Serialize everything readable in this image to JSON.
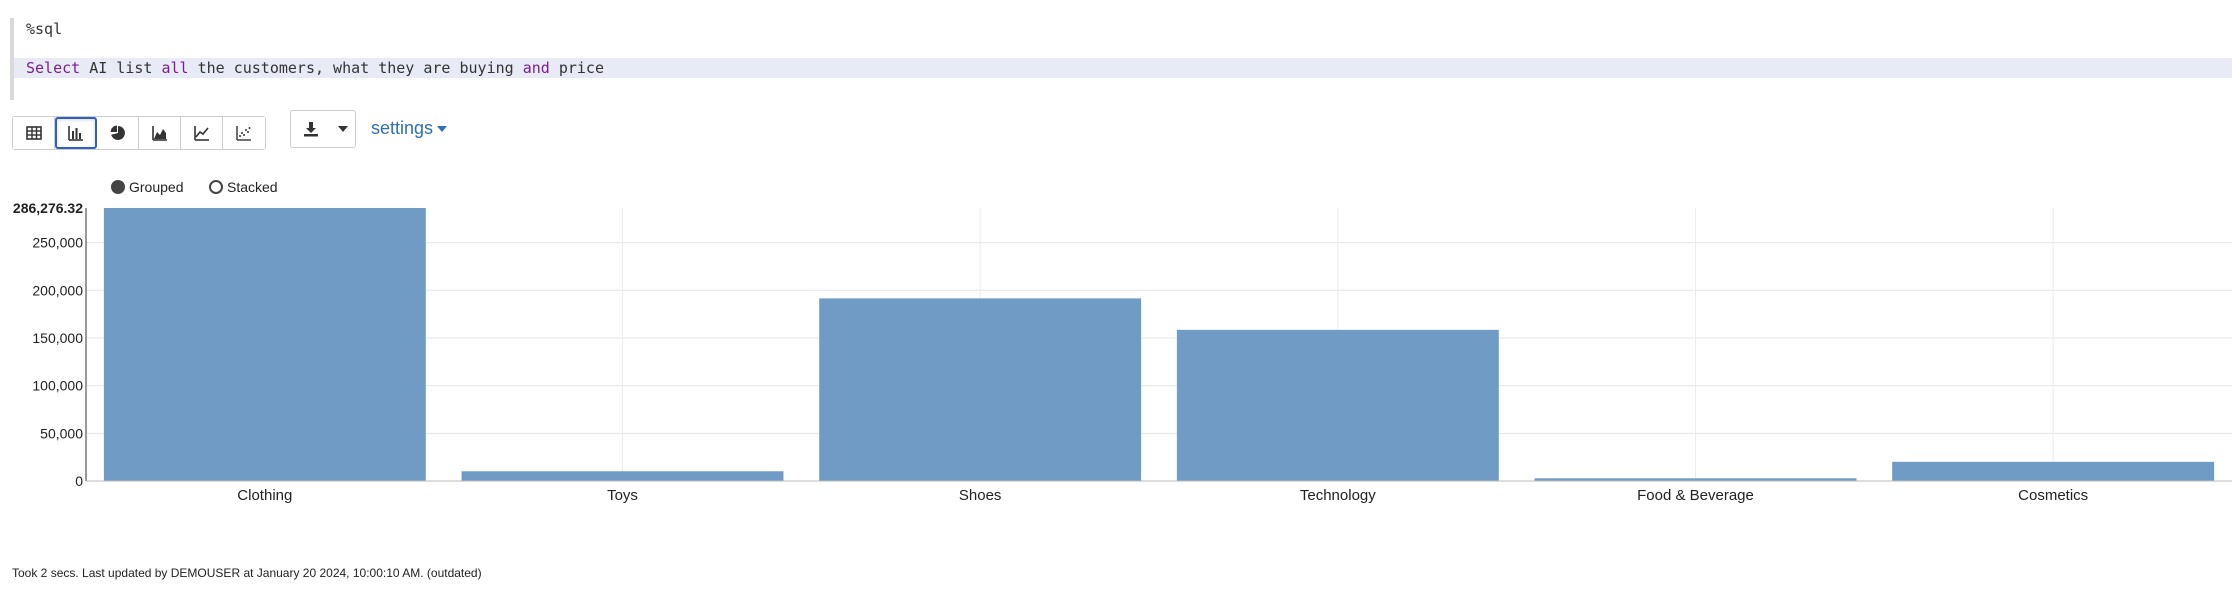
{
  "editor": {
    "line1": "%sql",
    "line2": [
      {
        "text": "Select",
        "kw": true
      },
      {
        "text": " AI list ",
        "kw": false
      },
      {
        "text": "all",
        "kw": true
      },
      {
        "text": " the customers, what they are buying ",
        "kw": false
      },
      {
        "text": "and",
        "kw": true
      },
      {
        "text": " price",
        "kw": false
      }
    ]
  },
  "toolbar": {
    "view_buttons": [
      "table-icon",
      "bar-chart-icon",
      "pie-chart-icon",
      "area-chart-icon",
      "line-chart-icon",
      "scatter-chart-icon"
    ],
    "active_view": "bar-chart-icon",
    "settings_label": "settings"
  },
  "options": {
    "grouped_label": "Grouped",
    "stacked_label": "Stacked",
    "selected": "Grouped"
  },
  "chart_data": {
    "type": "bar",
    "categories": [
      "Clothing",
      "Toys",
      "Shoes",
      "Technology",
      "Food & Beverage",
      "Cosmetics"
    ],
    "values": [
      286276.32,
      10200,
      191500,
      158500,
      2800,
      20100
    ],
    "ylim": [
      0,
      286276.32
    ],
    "yticks": [
      0,
      50000,
      100000,
      150000,
      200000,
      250000
    ],
    "ymax_label": "286,276.32",
    "bar_color": "#6f9bc4",
    "grid": true
  },
  "footer": {
    "status": "Took 2 secs. Last updated by DEMOUSER at January 20 2024, 10:00:10 AM. (outdated)"
  }
}
